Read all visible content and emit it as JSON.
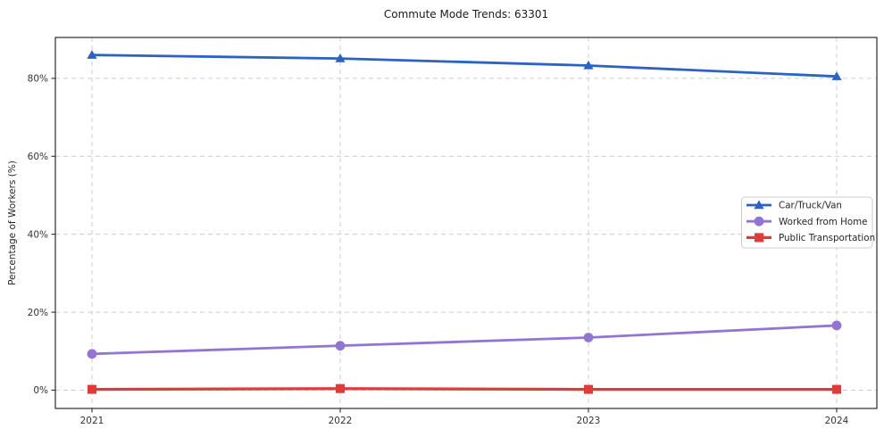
{
  "chart_data": {
    "type": "line",
    "title": "Commute Mode Trends: 63301",
    "xlabel": "",
    "ylabel": "Percentage of Workers (%)",
    "x": [
      "2021",
      "2022",
      "2023",
      "2024"
    ],
    "series": [
      {
        "name": "Car/Truck/Van",
        "color": "#2b63c5",
        "marker": "triangle",
        "line_width": 2.8,
        "values": [
          86.0,
          85.1,
          83.3,
          80.5
        ]
      },
      {
        "name": "Worked from Home",
        "color": "#9274d4",
        "marker": "circle",
        "line_width": 2.8,
        "values": [
          9.3,
          11.4,
          13.5,
          16.6
        ]
      },
      {
        "name": "Public Transportation",
        "color": "#df3b3a",
        "marker": "square",
        "line_width": 3.2,
        "values": [
          0.2,
          0.4,
          0.2,
          0.2
        ]
      }
    ],
    "yticks": [
      {
        "v": 0,
        "label": "0%"
      },
      {
        "v": 20,
        "label": "20%"
      },
      {
        "v": 40,
        "label": "40%"
      },
      {
        "v": 60,
        "label": "60%"
      },
      {
        "v": 80,
        "label": "80%"
      }
    ],
    "ylim": [
      -4.7,
      90.5
    ],
    "grid": true,
    "grid_color": "#cccccc",
    "frame_color": "#2b2b2b",
    "legend_position": "center-right"
  }
}
